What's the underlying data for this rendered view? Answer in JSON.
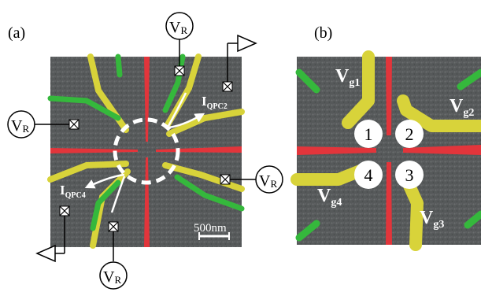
{
  "panels": {
    "a": {
      "label": "(a)"
    },
    "b": {
      "label": "(b)"
    }
  },
  "voltage_sources": {
    "label": "V",
    "subscript": "R"
  },
  "currents": {
    "qpc2": {
      "main": "I",
      "sub": "QPC2"
    },
    "qpc4": {
      "main": "I",
      "sub": "QPC4"
    }
  },
  "scale_bar": {
    "label": "500nm"
  },
  "gates": {
    "g1": {
      "main": "V",
      "sub": "g1"
    },
    "g2": {
      "main": "V",
      "sub": "g2"
    },
    "g3": {
      "main": "V",
      "sub": "g3"
    },
    "g4": {
      "main": "V",
      "sub": "g4"
    }
  },
  "dots": [
    "1",
    "2",
    "3",
    "4"
  ],
  "colors": {
    "substrate": "#56595a",
    "red_gate": "#e2353b",
    "yellow_gate": "#d8d33a",
    "green_gate": "#35b83c",
    "wire": "#000000",
    "white": "#ffffff"
  }
}
